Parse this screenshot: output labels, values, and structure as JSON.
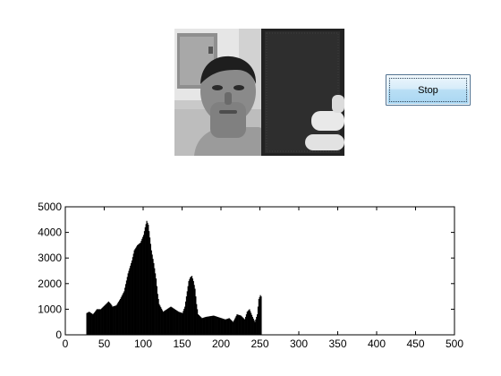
{
  "controls": {
    "stop_label": "Stop"
  },
  "video": {
    "icon": "webcam-frame"
  },
  "chart_data": {
    "type": "bar",
    "title": "",
    "xlabel": "",
    "ylabel": "",
    "xlim": [
      0,
      500
    ],
    "ylim": [
      0,
      5000
    ],
    "xticks": [
      0,
      50,
      100,
      150,
      200,
      250,
      300,
      350,
      400,
      450,
      500
    ],
    "yticks": [
      0,
      1000,
      2000,
      3000,
      4000,
      5000
    ],
    "grid": false,
    "bar_color": "#000000",
    "series": [
      {
        "x": [
          22,
          26,
          27,
          30,
          35,
          40,
          45,
          50,
          55,
          58,
          60,
          65,
          70,
          75,
          80,
          85,
          88,
          92,
          96,
          100,
          102,
          104,
          106,
          108,
          110,
          113,
          116,
          118,
          120,
          125,
          130,
          135,
          140,
          145,
          150,
          153,
          156,
          158,
          160,
          162,
          164,
          166,
          168,
          170,
          175,
          180,
          190,
          200,
          205,
          210,
          215,
          220,
          225,
          230,
          233,
          236,
          240,
          243,
          246,
          248,
          250,
          251,
          252,
          253
        ],
        "values": [
          0,
          0,
          850,
          900,
          800,
          1000,
          1000,
          1150,
          1300,
          1200,
          1100,
          1150,
          1400,
          1700,
          2400,
          2900,
          3300,
          3500,
          3600,
          3900,
          4200,
          4450,
          4300,
          3800,
          3300,
          2800,
          2200,
          1600,
          1200,
          900,
          1000,
          1100,
          1000,
          900,
          850,
          1100,
          1700,
          2100,
          2250,
          2300,
          2100,
          1800,
          1200,
          800,
          650,
          700,
          750,
          650,
          600,
          650,
          500,
          800,
          750,
          600,
          900,
          1000,
          700,
          500,
          800,
          1400,
          1550,
          1500,
          0,
          0
        ]
      }
    ]
  }
}
